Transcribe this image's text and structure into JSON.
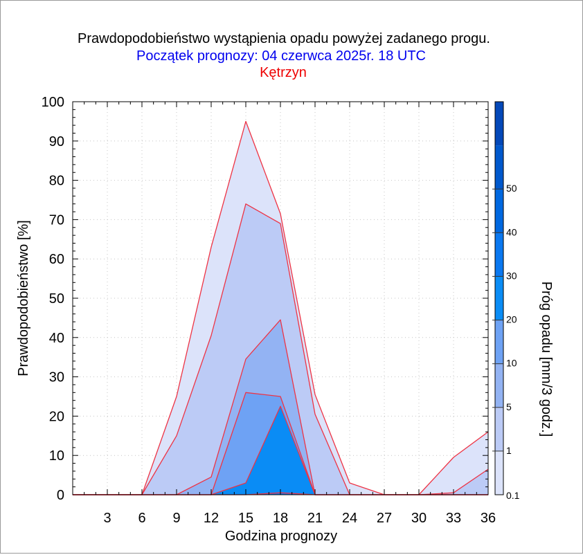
{
  "colors": {
    "title": "#000000",
    "subtitle": "#0000ee",
    "station": "#ee0000",
    "outline": "#ee3344",
    "thresholds": [
      "#dce3fa",
      "#bccbf6",
      "#93b3f3",
      "#6ea2f4",
      "#0a8cf5",
      "#0a78f0",
      "#0068e0",
      "#0058cc",
      "#0448b8",
      "#0a3aa4"
    ]
  },
  "chart_data": {
    "type": "area",
    "title": "Prawdopodobieństwo wystąpienia opadu powyżej zadanego progu.",
    "subtitle": "Początek prognozy: 04 czerwca 2025r. 18 UTC",
    "station": "Kętrzyn",
    "xlabel": "Godzina prognozy",
    "ylabel": "Prawdopodobieństwo [%]",
    "colorbar_label": "Próg opadu [mm/3 godz.]",
    "xlim": [
      0,
      36
    ],
    "ylim": [
      0,
      100
    ],
    "x_ticks": [
      3,
      6,
      9,
      12,
      15,
      18,
      21,
      24,
      27,
      30,
      33,
      36
    ],
    "y_ticks": [
      0,
      10,
      20,
      30,
      40,
      50,
      60,
      70,
      80,
      90,
      100
    ],
    "colorbar_levels": [
      0.1,
      1,
      5,
      10,
      20,
      30,
      40,
      50,
      60
    ],
    "colorbar_ticks": [
      0.1,
      1,
      5,
      10,
      20,
      30,
      40,
      50
    ],
    "grid": true,
    "x": [
      0,
      3,
      6,
      9,
      12,
      15,
      18,
      21,
      24,
      27,
      30,
      33,
      36
    ],
    "series": [
      {
        "name": "0.1",
        "values": [
          0,
          0,
          0,
          25,
          63,
          95,
          71.5,
          25.5,
          3,
          0,
          0,
          9.5,
          16
        ]
      },
      {
        "name": "1",
        "values": [
          0,
          0,
          0,
          15,
          40.5,
          74,
          69,
          20.5,
          0,
          0,
          0,
          0.5,
          6.5
        ]
      },
      {
        "name": "5",
        "values": [
          0,
          0,
          0,
          0,
          4.5,
          34.5,
          44.5,
          0,
          0,
          0,
          0,
          0,
          0
        ]
      },
      {
        "name": "10",
        "values": [
          0,
          0,
          0,
          0,
          0,
          26,
          25,
          0,
          0,
          0,
          0,
          0,
          0
        ]
      },
      {
        "name": "20",
        "values": [
          0,
          0,
          0,
          0,
          0,
          3,
          22.5,
          0,
          0,
          0,
          0,
          0,
          0
        ]
      },
      {
        "name": "30",
        "values": [
          0,
          0,
          0,
          0,
          0,
          0,
          0.5,
          0,
          0,
          0,
          0,
          0,
          0
        ]
      }
    ]
  }
}
